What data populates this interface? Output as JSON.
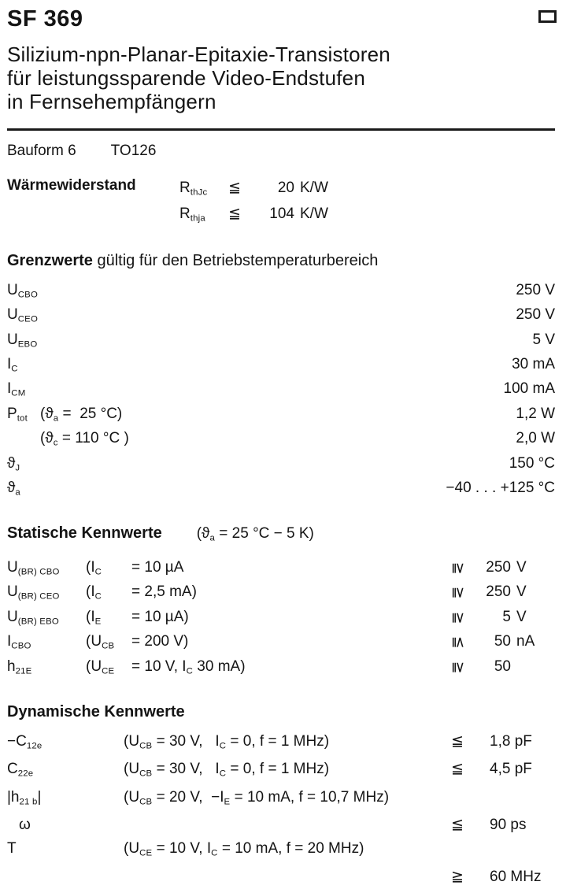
{
  "header": {
    "part_number": "SF 369",
    "description_lines": [
      "Silizium-npn-Planar-Epitaxie-Transistoren",
      "für leistungssparende Video-Endstufen",
      "in Fernsehempfängern"
    ]
  },
  "bauform": {
    "label": "Bauform 6",
    "package": "TO126"
  },
  "thermal": {
    "label": "Wärmewiderstand",
    "rows": [
      {
        "sym": [
          {
            "t": "R"
          },
          {
            "s": "thJc"
          }
        ],
        "rel": "≦",
        "num": "20",
        "unit": "K/W"
      },
      {
        "sym": [
          {
            "t": "R"
          },
          {
            "s": "thja"
          }
        ],
        "rel": "≦",
        "num": "104",
        "unit": "K/W"
      }
    ]
  },
  "grenzwerte": {
    "heading_bold": "Grenzwerte",
    "heading_rest": " gültig für den Betriebstemperaturbereich",
    "rows": [
      {
        "sym": [
          {
            "t": "U"
          },
          {
            "s": "CBO"
          }
        ],
        "cond": [],
        "value": "250 V"
      },
      {
        "sym": [
          {
            "t": "U"
          },
          {
            "s": "CEO"
          }
        ],
        "cond": [],
        "value": "250 V"
      },
      {
        "sym": [
          {
            "t": "U"
          },
          {
            "s": "EBO"
          }
        ],
        "cond": [],
        "value": "5 V"
      },
      {
        "sym": [
          {
            "t": "I"
          },
          {
            "s": "C"
          }
        ],
        "cond": [],
        "value": "30 mA"
      },
      {
        "sym": [
          {
            "t": "I"
          },
          {
            "s": "CM"
          }
        ],
        "cond": [],
        "value": "100 mA"
      },
      {
        "sym": [
          {
            "t": "P"
          },
          {
            "s": "tot"
          }
        ],
        "cond": [
          {
            "t": "(ϑ"
          },
          {
            "s": "a"
          },
          {
            "t": " =  25 °C)"
          }
        ],
        "value": "1,2 W"
      },
      {
        "sym": [],
        "cond": [
          {
            "t": "(ϑ"
          },
          {
            "s": "c"
          },
          {
            "t": " = 110 °C )"
          }
        ],
        "value": "2,0 W"
      },
      {
        "sym": [
          {
            "t": "ϑ"
          },
          {
            "s": "J"
          }
        ],
        "cond": [],
        "value": "150 °C"
      },
      {
        "sym": [
          {
            "t": "ϑ"
          },
          {
            "s": "a"
          }
        ],
        "cond": [],
        "value": "−40 . . . +125 °C"
      }
    ]
  },
  "statische": {
    "heading_bold": "Statische Kennwerte",
    "note": [
      {
        "t": "(ϑ"
      },
      {
        "s": "a"
      },
      {
        "t": " = 25 °C − 5 K)"
      }
    ],
    "rows": [
      {
        "sym": [
          {
            "t": "U"
          },
          {
            "s": "(BR) CBO"
          }
        ],
        "c1": [
          {
            "t": "(I"
          },
          {
            "s": "C"
          }
        ],
        "c2": [
          {
            "t": "= 10 µA"
          }
        ],
        "rel": "≧",
        "num": "250",
        "unit": "V"
      },
      {
        "sym": [
          {
            "t": "U"
          },
          {
            "s": "(BR) CEO"
          }
        ],
        "c1": [
          {
            "t": "(I"
          },
          {
            "s": "C"
          }
        ],
        "c2": [
          {
            "t": "= 2,5 mA)"
          }
        ],
        "rel": "≧",
        "num": "250",
        "unit": "V"
      },
      {
        "sym": [
          {
            "t": "U"
          },
          {
            "s": "(BR) EBO"
          }
        ],
        "c1": [
          {
            "t": "(I"
          },
          {
            "s": "E"
          }
        ],
        "c2": [
          {
            "t": "= 10 µA)"
          }
        ],
        "rel": "≧",
        "num": "5",
        "unit": "V"
      },
      {
        "sym": [
          {
            "t": "I"
          },
          {
            "s": "CBO"
          }
        ],
        "c1": [
          {
            "t": "(U"
          },
          {
            "s": "CB"
          }
        ],
        "c2": [
          {
            "t": "= 200 V)"
          }
        ],
        "rel": "≦",
        "num": "50",
        "unit": "nA"
      },
      {
        "sym": [
          {
            "t": "h"
          },
          {
            "s": "21E"
          }
        ],
        "c1": [
          {
            "t": "(U"
          },
          {
            "s": "CE"
          }
        ],
        "c2": [
          {
            "t": "= 10 V, I"
          },
          {
            "s": "C"
          },
          {
            "t": " 30 mA)"
          }
        ],
        "rel": "≧",
        "num": "50",
        "unit": ""
      }
    ]
  },
  "dynamische": {
    "heading_bold": "Dynamische Kennwerte",
    "rows": [
      {
        "sym": [
          {
            "t": "−C"
          },
          {
            "s": "12e"
          }
        ],
        "cond": [
          {
            "t": "(U"
          },
          {
            "s": "CB"
          },
          {
            "t": " = 30 V,   I"
          },
          {
            "s": "C"
          },
          {
            "t": " = 0, f = 1 MHz)"
          }
        ],
        "rel": "≦",
        "value": "1,8 pF"
      },
      {
        "sym": [
          {
            "t": "C"
          },
          {
            "s": "22e"
          }
        ],
        "cond": [
          {
            "t": "(U"
          },
          {
            "s": "CB"
          },
          {
            "t": " = 30 V,   I"
          },
          {
            "s": "C"
          },
          {
            "t": " = 0, f = 1 MHz)"
          }
        ],
        "rel": "≦",
        "value": "4,5 pF"
      },
      {
        "sym": [
          {
            "t": "|h"
          },
          {
            "s": "21 b"
          },
          {
            "t": "|"
          }
        ],
        "cond": [
          {
            "t": "(U"
          },
          {
            "s": "CB"
          },
          {
            "t": " = 20 V,  −I"
          },
          {
            "s": "E"
          },
          {
            "t": " = 10 mA, f = 10,7 MHz)"
          }
        ],
        "rel": "",
        "value": ""
      },
      {
        "sym": [
          {
            "t": "ω"
          }
        ],
        "indent": true,
        "cond": [],
        "rel": "≦",
        "value": "90 ps"
      },
      {
        "sym": [
          {
            "t": "T"
          }
        ],
        "cond": [
          {
            "t": "(U"
          },
          {
            "s": "CE"
          },
          {
            "t": " = 10 V, I"
          },
          {
            "s": "C"
          },
          {
            "t": " = 10 mA, f = 20 MHz)"
          }
        ],
        "rel": "",
        "value": ""
      },
      {
        "sym": [],
        "cond": [],
        "rel": "≧",
        "value": "60 MHz"
      }
    ]
  },
  "colors": {
    "ink": "#141414",
    "paper": "#ffffff"
  }
}
